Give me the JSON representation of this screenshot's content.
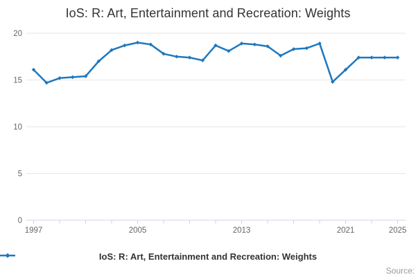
{
  "chart_data": {
    "type": "line",
    "title": "IoS: R: Art, Entertainment and Recreation: Weights",
    "xlabel": "",
    "ylabel": "",
    "x": [
      1997,
      1998,
      1999,
      2000,
      2001,
      2002,
      2003,
      2004,
      2005,
      2006,
      2007,
      2008,
      2009,
      2010,
      2011,
      2012,
      2013,
      2014,
      2015,
      2016,
      2017,
      2018,
      2019,
      2020,
      2021,
      2022,
      2023,
      2024,
      2025
    ],
    "series": [
      {
        "name": "IoS: R: Art, Entertainment and Recreation: Weights",
        "color": "#1e78be",
        "values": [
          16.1,
          14.7,
          15.2,
          15.3,
          15.4,
          17.0,
          18.2,
          18.7,
          19.0,
          18.8,
          17.8,
          17.5,
          17.4,
          17.1,
          18.7,
          18.1,
          18.9,
          18.8,
          18.6,
          17.6,
          18.3,
          18.4,
          18.9,
          14.8,
          16.1,
          17.4,
          17.4,
          17.4,
          17.4
        ]
      }
    ],
    "ylim": [
      0,
      20
    ],
    "yticks": [
      0,
      5,
      10,
      15,
      20
    ],
    "xtick_step_years": 2,
    "xtick_label_years": [
      1997,
      2005,
      2013,
      2021,
      2025
    ],
    "grid": "horizontal-only",
    "legend_position": "bottom-center",
    "marker": "diamond"
  },
  "legend": {
    "label": "IoS: R: Art, Entertainment and Recreation: Weights"
  },
  "credits": {
    "label": "Source:"
  },
  "colors": {
    "line": "#1e78be",
    "grid": "#e6e6e6",
    "axis": "#ccd6eb",
    "title_text": "#333333",
    "axis_text": "#666666",
    "legend_text": "#333333",
    "credits_text": "#999999"
  }
}
